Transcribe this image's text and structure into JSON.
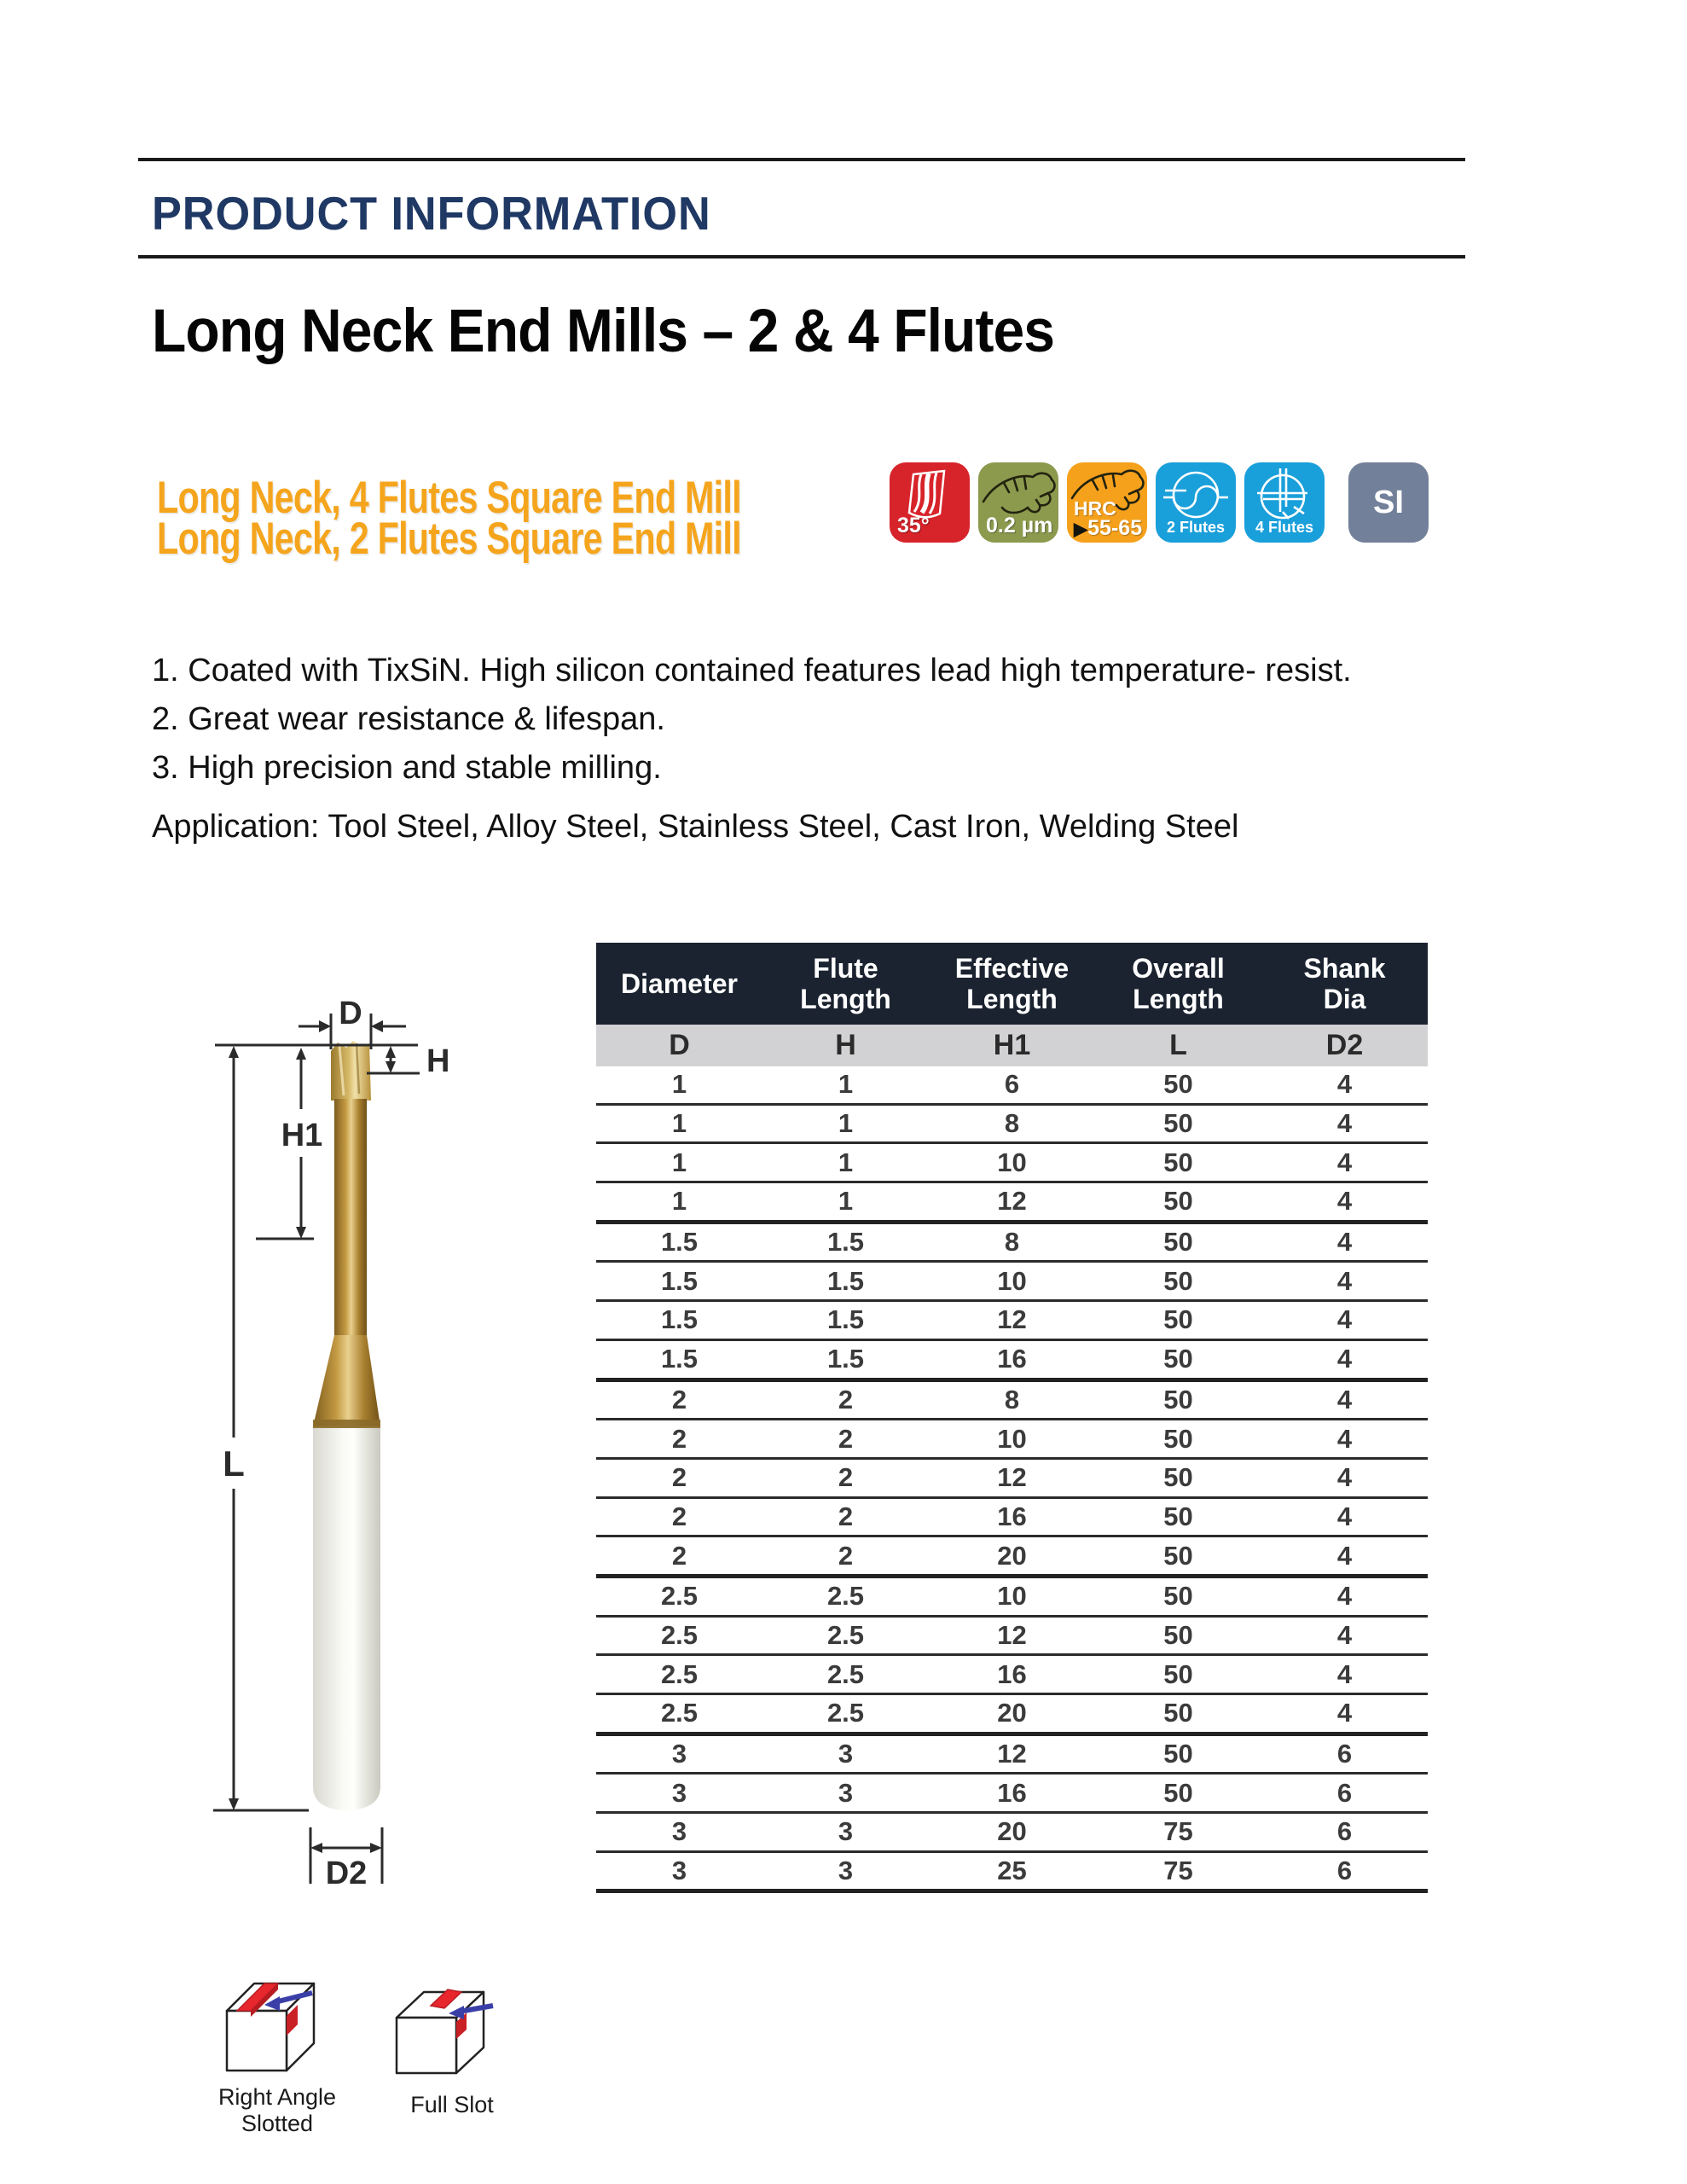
{
  "header": {
    "kicker": "PRODUCT INFORMATION",
    "title": "Long Neck End Mills – 2 & 4 Flutes"
  },
  "subheading": {
    "line1": "Long Neck, 4 Flutes Square End Mill",
    "line2": "Long Neck, 2 Flutes Square End Mill",
    "color": "#F5A51D"
  },
  "badges": [
    {
      "id": "helix-angle",
      "label": "35°",
      "bg": "#D7232A"
    },
    {
      "id": "surface-roughness",
      "label": "0.2 µm",
      "bg": "#8C9A4E"
    },
    {
      "id": "hardness",
      "label_top": "HRC",
      "arrow": "▶",
      "label_bottom": "55-65",
      "bg": "#F5A11C"
    },
    {
      "id": "two-flutes",
      "label": "2 Flutes",
      "bg": "#199FDA"
    },
    {
      "id": "four-flutes",
      "label": "4 Flutes",
      "bg": "#199FDA"
    },
    {
      "id": "si-units",
      "label": "SI",
      "bg": "#72809A"
    }
  ],
  "features": [
    "1. Coated with TixSiN. High silicon contained features lead high temperature- resist.",
    "2. Great wear resistance & lifespan.",
    "3. High precision and stable milling."
  ],
  "application": "Application: Tool Steel, Alloy Steel, Stainless Steel, Cast Iron, Welding Steel",
  "diagram": {
    "labels": {
      "d": "D",
      "h": "H",
      "h1": "H1",
      "l": "L",
      "d2": "D2"
    }
  },
  "table": {
    "headers": [
      {
        "title": "Diameter",
        "code": "D"
      },
      {
        "title": "Flute Length",
        "code": "H"
      },
      {
        "title": "Effective Length",
        "code": "H1"
      },
      {
        "title": "Overall Length",
        "code": "L"
      },
      {
        "title": "Shank Dia",
        "code": "D2"
      }
    ],
    "rows": [
      [
        "1",
        "1",
        "6",
        "50",
        "4"
      ],
      [
        "1",
        "1",
        "8",
        "50",
        "4"
      ],
      [
        "1",
        "1",
        "10",
        "50",
        "4"
      ],
      [
        "1",
        "1",
        "12",
        "50",
        "4"
      ],
      [
        "1.5",
        "1.5",
        "8",
        "50",
        "4"
      ],
      [
        "1.5",
        "1.5",
        "10",
        "50",
        "4"
      ],
      [
        "1.5",
        "1.5",
        "12",
        "50",
        "4"
      ],
      [
        "1.5",
        "1.5",
        "16",
        "50",
        "4"
      ],
      [
        "2",
        "2",
        "8",
        "50",
        "4"
      ],
      [
        "2",
        "2",
        "10",
        "50",
        "4"
      ],
      [
        "2",
        "2",
        "12",
        "50",
        "4"
      ],
      [
        "2",
        "2",
        "16",
        "50",
        "4"
      ],
      [
        "2",
        "2",
        "20",
        "50",
        "4"
      ],
      [
        "2.5",
        "2.5",
        "10",
        "50",
        "4"
      ],
      [
        "2.5",
        "2.5",
        "12",
        "50",
        "4"
      ],
      [
        "2.5",
        "2.5",
        "16",
        "50",
        "4"
      ],
      [
        "2.5",
        "2.5",
        "20",
        "50",
        "4"
      ],
      [
        "3",
        "3",
        "12",
        "50",
        "6"
      ],
      [
        "3",
        "3",
        "16",
        "50",
        "6"
      ],
      [
        "3",
        "3",
        "20",
        "75",
        "6"
      ],
      [
        "3",
        "3",
        "25",
        "75",
        "6"
      ]
    ],
    "group_end_rows": [
      3,
      7,
      12,
      16
    ]
  },
  "footer_icons": [
    {
      "caption": "Right Angle Slotted"
    },
    {
      "caption": "Full Slot"
    }
  ]
}
